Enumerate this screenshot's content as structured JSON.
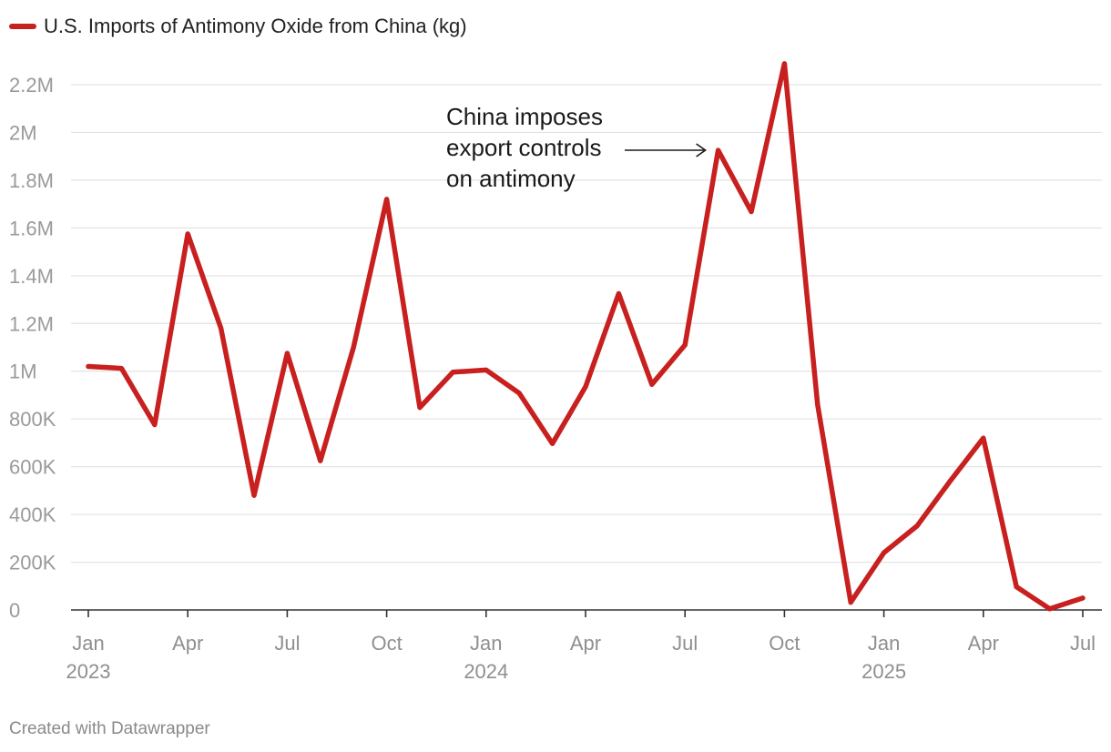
{
  "colors": {
    "line": "#c8201f",
    "grid": "#e3e3e3",
    "axis": "#333333"
  },
  "legend": {
    "label": "U.S. Imports of Antimony Oxide from China (kg)"
  },
  "footer": {
    "credit": "Created with Datawrapper"
  },
  "chart_data": {
    "type": "line",
    "title": "",
    "xlabel": "",
    "ylabel": "",
    "ylim": [
      0,
      2200000
    ],
    "yticks": [
      0,
      200000,
      400000,
      600000,
      800000,
      1000000,
      1200000,
      1400000,
      1600000,
      1800000,
      2000000,
      2200000
    ],
    "ytick_labels": [
      "0",
      "200K",
      "400K",
      "600K",
      "800K",
      "1M",
      "1.2M",
      "1.4M",
      "1.6M",
      "1.8M",
      "2M",
      "2.2M"
    ],
    "x": [
      "2023-01",
      "2023-02",
      "2023-03",
      "2023-04",
      "2023-05",
      "2023-06",
      "2023-07",
      "2023-08",
      "2023-09",
      "2023-10",
      "2023-11",
      "2023-12",
      "2024-01",
      "2024-02",
      "2024-03",
      "2024-04",
      "2024-05",
      "2024-06",
      "2024-07",
      "2024-08",
      "2024-09",
      "2024-10",
      "2024-11",
      "2024-12",
      "2025-01",
      "2025-02",
      "2025-03",
      "2025-04",
      "2025-05",
      "2025-06",
      "2025-07"
    ],
    "xtick_positions": [
      0,
      3,
      6,
      9,
      12,
      15,
      18,
      21,
      24,
      27,
      30
    ],
    "xtick_labels": [
      [
        "Jan",
        "2023"
      ],
      [
        "Apr"
      ],
      [
        "Jul"
      ],
      [
        "Oct"
      ],
      [
        "Jan",
        "2024"
      ],
      [
        "Apr"
      ],
      [
        "Jul"
      ],
      [
        "Oct"
      ],
      [
        "Jan",
        "2025"
      ],
      [
        "Apr"
      ],
      [
        "Jul"
      ]
    ],
    "series": [
      {
        "name": "U.S. Imports of Antimony Oxide from China (kg)",
        "values": [
          1020000,
          1012000,
          776000,
          1575000,
          1180000,
          480000,
          1075000,
          625000,
          1100000,
          1720000,
          848000,
          996000,
          1005000,
          908000,
          697000,
          935000,
          1325000,
          945000,
          1110000,
          1925000,
          1668000,
          2288000,
          860000,
          32000,
          240000,
          352000,
          540000,
          720000,
          97000,
          5000,
          50000
        ]
      }
    ],
    "annotations": [
      {
        "lines": [
          "China imposes",
          "export controls",
          "on antimony"
        ],
        "target_x_index": 19
      }
    ]
  }
}
